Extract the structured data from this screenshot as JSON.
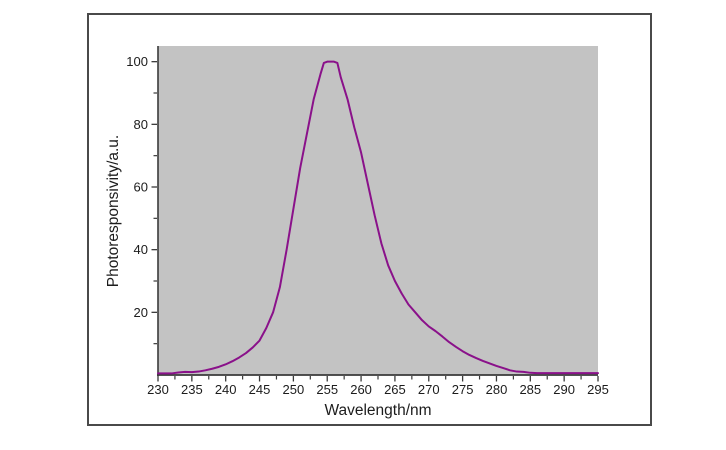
{
  "figure": {
    "background_color": "#ffffff",
    "frame_border_color": "#4a4a4a"
  },
  "chart_data": {
    "type": "line",
    "title": "",
    "xlabel": "Wavelength/nm",
    "ylabel": "Photoresponsivity/a.u.",
    "xlim": [
      230,
      295
    ],
    "ylim": [
      0,
      105
    ],
    "x_ticks": [
      230,
      235,
      240,
      245,
      250,
      255,
      260,
      265,
      270,
      275,
      280,
      285,
      290,
      295
    ],
    "y_ticks": [
      20,
      40,
      60,
      80,
      100
    ],
    "y_minor_step": 10,
    "grid": false,
    "legend": null,
    "plot_bg_color": "#c3c3c3",
    "line_color": "#8a118a",
    "axis_color": "#3a3a3a",
    "text_color": "#1c1c1c",
    "peak": {
      "wavelength_nm": 255,
      "value": 100
    },
    "series": [
      {
        "name": "photoresponsivity",
        "points": [
          [
            230,
            0.5
          ],
          [
            231,
            0.5
          ],
          [
            232,
            0.5
          ],
          [
            233,
            0.8
          ],
          [
            234,
            1.0
          ],
          [
            235,
            0.9
          ],
          [
            236,
            1.1
          ],
          [
            237,
            1.5
          ],
          [
            238,
            2.0
          ],
          [
            239,
            2.6
          ],
          [
            240,
            3.4
          ],
          [
            241,
            4.4
          ],
          [
            242,
            5.6
          ],
          [
            243,
            7.0
          ],
          [
            244,
            8.8
          ],
          [
            245,
            11
          ],
          [
            246,
            15
          ],
          [
            247,
            20
          ],
          [
            248,
            28
          ],
          [
            249,
            40
          ],
          [
            250,
            53
          ],
          [
            251,
            66
          ],
          [
            252,
            77
          ],
          [
            253,
            88
          ],
          [
            254,
            96
          ],
          [
            254.5,
            99.6
          ],
          [
            255,
            100
          ],
          [
            256,
            100
          ],
          [
            256.5,
            99.6
          ],
          [
            257,
            95
          ],
          [
            258,
            88
          ],
          [
            259,
            79
          ],
          [
            260,
            71
          ],
          [
            261,
            61
          ],
          [
            262,
            51
          ],
          [
            263,
            42
          ],
          [
            264,
            35
          ],
          [
            265,
            30
          ],
          [
            266,
            26
          ],
          [
            267,
            22.5
          ],
          [
            268,
            20
          ],
          [
            269,
            17.5
          ],
          [
            270,
            15.5
          ],
          [
            271,
            14
          ],
          [
            272,
            12.3
          ],
          [
            273,
            10.5
          ],
          [
            274,
            9
          ],
          [
            275,
            7.6
          ],
          [
            276,
            6.4
          ],
          [
            277,
            5.4
          ],
          [
            278,
            4.5
          ],
          [
            279,
            3.7
          ],
          [
            280,
            2.9
          ],
          [
            281,
            2.2
          ],
          [
            282,
            1.5
          ],
          [
            283,
            1.1
          ],
          [
            284,
            1.0
          ],
          [
            285,
            0.7
          ],
          [
            286,
            0.6
          ],
          [
            287,
            0.6
          ],
          [
            288,
            0.6
          ],
          [
            289,
            0.6
          ],
          [
            290,
            0.6
          ],
          [
            291,
            0.6
          ],
          [
            292,
            0.6
          ],
          [
            293,
            0.6
          ],
          [
            294,
            0.6
          ],
          [
            295,
            0.6
          ]
        ]
      }
    ]
  }
}
